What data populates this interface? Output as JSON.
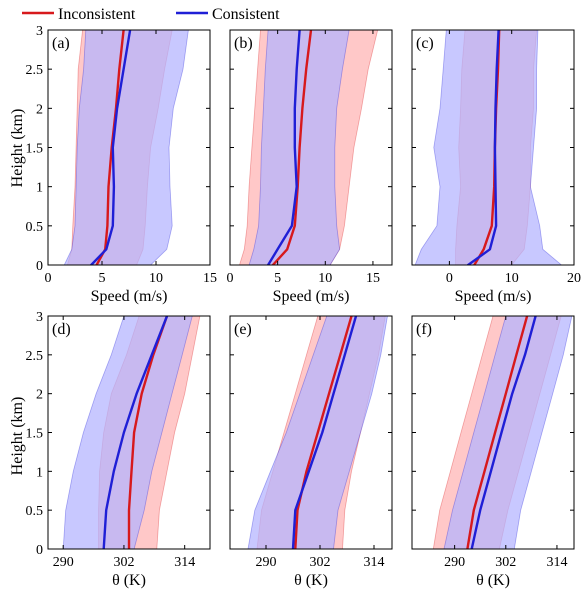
{
  "legend": {
    "items": [
      {
        "label": "Inconsistent",
        "color": "#d7191c"
      },
      {
        "label": "Consistent",
        "color": "#1f1fd6"
      }
    ],
    "placement": "top"
  },
  "colors": {
    "inconsistent_line": "#d7191c",
    "consistent_line": "#1f1fd6",
    "inconsistent_fill": "#ffb3b3",
    "consistent_fill": "#b3b3ff"
  },
  "chart_data": [
    {
      "panel": "(a)",
      "type": "line",
      "xlabel": "Speed (m/s)",
      "ylabel": "Height (km)",
      "xlim": [
        0,
        15
      ],
      "ylim": [
        0,
        3
      ],
      "xticks": [
        "0",
        "5",
        "10",
        "15"
      ],
      "yticks": [
        "0",
        "0.5",
        "1",
        "1.5",
        "2",
        "2.5",
        "3"
      ],
      "series": [
        {
          "name": "Inconsistent",
          "color": "#d7191c",
          "fill": "#ffb3b3",
          "y": [
            0,
            0.2,
            0.5,
            1.0,
            1.5,
            2.0,
            2.5,
            3.0
          ],
          "mean": [
            4.5,
            5.3,
            5.5,
            5.6,
            5.9,
            6.3,
            6.6,
            7.0
          ],
          "lower": [
            1.8,
            2.2,
            2.3,
            2.5,
            2.6,
            2.7,
            2.8,
            3.2
          ],
          "upper": [
            8.2,
            8.8,
            9.0,
            9.2,
            9.5,
            10.2,
            10.8,
            11.5
          ]
        },
        {
          "name": "Consistent",
          "color": "#1f1fd6",
          "fill": "#b3b3ff",
          "y": [
            0,
            0.2,
            0.5,
            1.0,
            1.5,
            2.0,
            2.5,
            3.0
          ],
          "mean": [
            4.0,
            5.4,
            6.0,
            6.1,
            6.0,
            6.4,
            7.0,
            7.6
          ],
          "lower": [
            1.5,
            2.2,
            2.5,
            2.6,
            2.7,
            2.9,
            3.3,
            3.5
          ],
          "upper": [
            9.5,
            11.0,
            11.5,
            11.3,
            11.2,
            11.6,
            12.5,
            13.0
          ]
        }
      ]
    },
    {
      "panel": "(b)",
      "type": "line",
      "xlabel": "Speed (m/s)",
      "ylabel": "",
      "xlim": [
        0,
        17
      ],
      "ylim": [
        0,
        3
      ],
      "xticks": [
        "0",
        "5",
        "10",
        "15"
      ],
      "yticks": [],
      "series": [
        {
          "name": "Inconsistent",
          "color": "#d7191c",
          "fill": "#ffb3b3",
          "y": [
            0,
            0.2,
            0.5,
            1.0,
            1.5,
            2.0,
            2.5,
            3.0
          ],
          "mean": [
            4.5,
            6.0,
            6.8,
            7.1,
            7.3,
            7.6,
            8.0,
            8.5
          ],
          "lower": [
            1.0,
            1.5,
            1.8,
            2.0,
            2.3,
            2.6,
            2.9,
            3.2
          ],
          "upper": [
            10.5,
            11.5,
            12.0,
            12.5,
            13.0,
            13.8,
            14.5,
            15.5
          ]
        },
        {
          "name": "Consistent",
          "color": "#1f1fd6",
          "fill": "#b3b3ff",
          "y": [
            0,
            0.2,
            0.5,
            1.0,
            1.5,
            2.0,
            2.5,
            3.0
          ],
          "mean": [
            4.0,
            5.0,
            6.5,
            7.0,
            6.8,
            6.8,
            7.0,
            7.3
          ],
          "lower": [
            2.0,
            2.5,
            3.0,
            3.2,
            3.3,
            3.5,
            3.7,
            4.0
          ],
          "upper": [
            10.5,
            11.5,
            11.2,
            11.0,
            11.0,
            11.2,
            11.8,
            12.5
          ]
        }
      ]
    },
    {
      "panel": "(c)",
      "type": "line",
      "xlabel": "Speed (m/s)",
      "ylabel": "",
      "xlim": [
        -6,
        20
      ],
      "ylim": [
        0,
        3
      ],
      "xticks": [
        "0",
        "10",
        "20"
      ],
      "yticks": [],
      "series": [
        {
          "name": "Inconsistent",
          "color": "#d7191c",
          "fill": "#ffb3b3",
          "y": [
            0,
            0.2,
            0.5,
            1.0,
            1.5,
            2.0,
            2.5,
            3.0
          ],
          "mean": [
            4.0,
            5.5,
            6.8,
            7.2,
            7.3,
            7.5,
            7.8,
            8.0
          ],
          "lower": [
            1.0,
            1.0,
            1.2,
            1.8,
            1.5,
            1.8,
            2.0,
            2.5
          ],
          "upper": [
            10.0,
            12.0,
            12.5,
            13.0,
            13.0,
            13.5,
            13.5,
            14.0
          ]
        },
        {
          "name": "Consistent",
          "color": "#1f1fd6",
          "fill": "#b3b3ff",
          "y": [
            0,
            0.2,
            0.5,
            1.0,
            1.5,
            2.0,
            2.5,
            3.0
          ],
          "mean": [
            3.0,
            6.5,
            7.5,
            7.4,
            7.3,
            7.4,
            7.6,
            7.9
          ],
          "lower": [
            -5.5,
            -4.5,
            -2.0,
            -1.5,
            -2.5,
            -1.5,
            -1.0,
            -0.5
          ],
          "upper": [
            18.0,
            15.0,
            14.5,
            13.0,
            13.5,
            14.0,
            14.0,
            14.2
          ]
        }
      ]
    },
    {
      "panel": "(d)",
      "type": "line",
      "xlabel": "θ (K)",
      "ylabel": "Height (km)",
      "xlim": [
        287,
        319
      ],
      "ylim": [
        0,
        3
      ],
      "xticks": [
        "290",
        "302",
        "314"
      ],
      "yticks": [
        "0",
        "0.5",
        "1",
        "1.5",
        "2",
        "2.5",
        "3"
      ],
      "series": [
        {
          "name": "Inconsistent",
          "color": "#d7191c",
          "fill": "#ffb3b3",
          "y": [
            0,
            0.5,
            1.0,
            1.5,
            2.0,
            2.5,
            3.0
          ],
          "mean": [
            303.0,
            303.0,
            303.5,
            304.0,
            305.5,
            307.8,
            310.5
          ],
          "lower": [
            297.0,
            297.0,
            297.2,
            298.0,
            299.5,
            302.5,
            305.0
          ],
          "upper": [
            308.5,
            309.0,
            310.5,
            312.0,
            314.0,
            315.5,
            317.0
          ]
        },
        {
          "name": "Consistent",
          "color": "#1f1fd6",
          "fill": "#b3b3ff",
          "y": [
            0,
            0.5,
            1.0,
            1.5,
            2.0,
            2.5,
            3.0
          ],
          "mean": [
            298.0,
            298.5,
            300.0,
            302.0,
            304.5,
            307.5,
            310.5
          ],
          "lower": [
            290.0,
            290.5,
            292.0,
            294.0,
            296.5,
            299.5,
            302.0
          ],
          "upper": [
            304.0,
            306.0,
            307.5,
            309.5,
            311.5,
            313.5,
            315.5
          ]
        }
      ]
    },
    {
      "panel": "(e)",
      "type": "line",
      "xlabel": "θ (K)",
      "ylabel": "",
      "xlim": [
        282,
        318
      ],
      "ylim": [
        0,
        3
      ],
      "xticks": [
        "290",
        "302",
        "314"
      ],
      "yticks": [],
      "series": [
        {
          "name": "Inconsistent",
          "color": "#d7191c",
          "fill": "#ffb3b3",
          "y": [
            0,
            0.5,
            1.0,
            1.5,
            2.0,
            2.5,
            3.0
          ],
          "mean": [
            296.5,
            297.0,
            299.0,
            301.5,
            304.0,
            306.5,
            309.0
          ],
          "lower": [
            288.0,
            289.0,
            291.5,
            294.0,
            296.5,
            299.0,
            301.5
          ],
          "upper": [
            307.0,
            307.5,
            309.0,
            311.0,
            313.0,
            315.0,
            316.5
          ]
        },
        {
          "name": "Consistent",
          "color": "#1f1fd6",
          "fill": "#b3b3ff",
          "y": [
            0,
            0.5,
            1.0,
            1.5,
            2.0,
            2.5,
            3.0
          ],
          "mean": [
            296.0,
            296.5,
            299.5,
            302.5,
            305.0,
            307.5,
            310.0
          ],
          "lower": [
            286.0,
            287.5,
            291.0,
            294.5,
            297.5,
            300.5,
            303.5
          ],
          "upper": [
            305.0,
            306.0,
            308.5,
            311.0,
            313.5,
            315.5,
            317.0
          ]
        }
      ]
    },
    {
      "panel": "(f)",
      "type": "line",
      "xlabel": "θ (K)",
      "ylabel": "",
      "xlim": [
        280,
        318
      ],
      "ylim": [
        0,
        3
      ],
      "xticks": [
        "290",
        "302",
        "314"
      ],
      "yticks": [],
      "series": [
        {
          "name": "Inconsistent",
          "color": "#d7191c",
          "fill": "#ffb3b3",
          "y": [
            0,
            0.5,
            1.0,
            1.5,
            2.0,
            2.5,
            3.0
          ],
          "mean": [
            293.0,
            294.5,
            297.0,
            299.5,
            302.0,
            304.5,
            307.0
          ],
          "lower": [
            285.0,
            286.5,
            289.0,
            291.5,
            294.0,
            296.5,
            299.0
          ],
          "upper": [
            300.5,
            302.5,
            305.0,
            307.5,
            310.0,
            312.5,
            315.0
          ]
        },
        {
          "name": "Consistent",
          "color": "#1f1fd6",
          "fill": "#b3b3ff",
          "y": [
            0,
            0.5,
            1.0,
            1.5,
            2.0,
            2.5,
            3.0
          ],
          "mean": [
            294.0,
            296.0,
            298.5,
            301.0,
            303.5,
            306.5,
            309.0
          ],
          "lower": [
            287.5,
            289.5,
            292.0,
            294.5,
            297.0,
            299.5,
            302.0
          ],
          "upper": [
            304.0,
            305.5,
            308.0,
            310.5,
            313.0,
            315.5,
            317.5
          ]
        }
      ]
    }
  ]
}
